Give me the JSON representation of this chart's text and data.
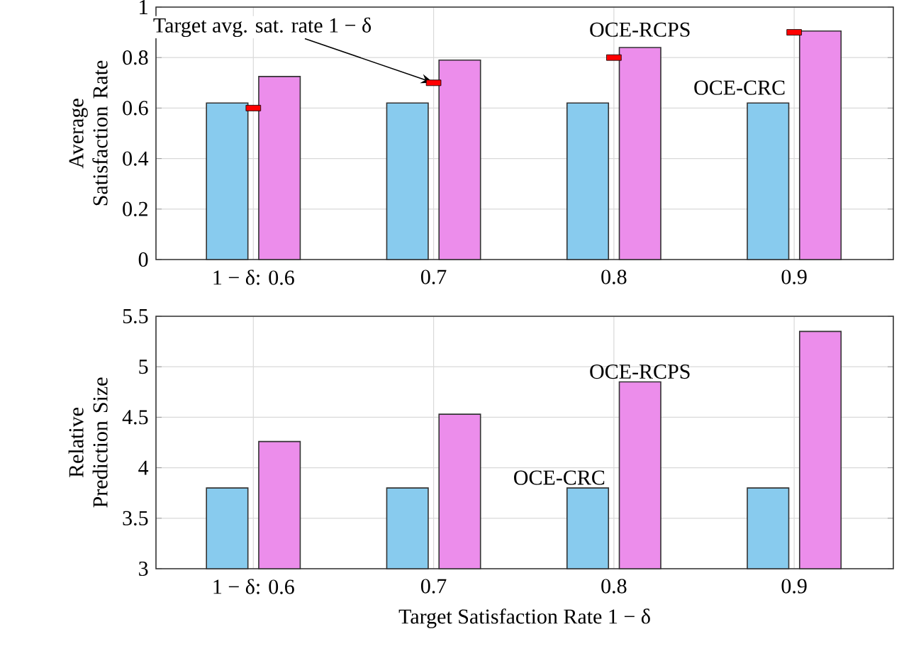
{
  "chart_data": [
    {
      "type": "bar",
      "ylabel": "Average Satisfaction Rate",
      "categories": [
        "1 − δ: 0.6",
        "0.7",
        "0.8",
        "0.9"
      ],
      "series": [
        {
          "name": "OCE-CRC",
          "color": "#88cbee",
          "values": [
            0.62,
            0.62,
            0.62,
            0.62
          ]
        },
        {
          "name": "OCE-RCPS",
          "color": "#ec8deb",
          "values": [
            0.725,
            0.79,
            0.84,
            0.905
          ]
        },
        {
          "type": "scatter",
          "color": "#ff0000",
          "values": [
            0.6,
            0.7,
            0.8,
            0.9
          ]
        }
      ],
      "annotations": [
        {
          "text": "Target avg. sat. rate 1 − δ",
          "x": "0.7",
          "y": 0.7
        }
      ],
      "ylim": [
        0,
        1
      ],
      "yticks": [
        0,
        0.2,
        0.4,
        0.6,
        0.8,
        1
      ],
      "grid": true
    },
    {
      "type": "bar",
      "ylabel": "Relative Prediction Size",
      "xlabel": "Target Satisfaction Rate 1 − δ",
      "categories": [
        "1 − δ: 0.6",
        "0.7",
        "0.8",
        "0.9"
      ],
      "series": [
        {
          "name": "OCE-CRC",
          "color": "#88cbee",
          "values": [
            3.8,
            3.8,
            3.8,
            3.8
          ]
        },
        {
          "name": "OCE-RCPS",
          "color": "#ec8deb",
          "values": [
            4.26,
            4.53,
            4.85,
            5.35
          ]
        }
      ],
      "ylim": [
        3,
        5.5
      ],
      "yticks": [
        3,
        3.5,
        4,
        4.5,
        5,
        5.5
      ],
      "grid": true
    }
  ]
}
